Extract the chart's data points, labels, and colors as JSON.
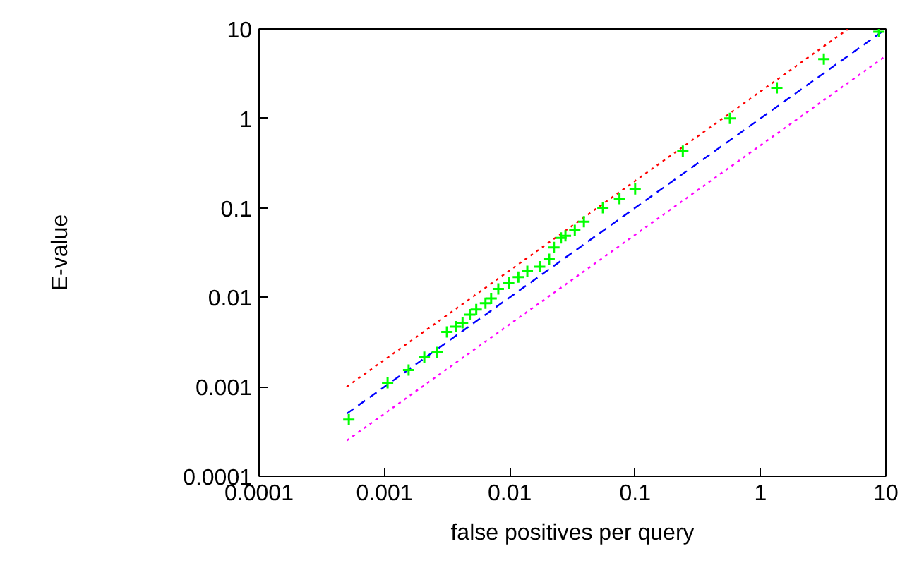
{
  "chart_data": {
    "type": "scatter",
    "xlabel": "false positives per query",
    "ylabel": "E-value",
    "log": "xy",
    "xlim": [
      0.0001,
      10
    ],
    "ylim": [
      0.0001,
      10
    ],
    "xticks": [
      0.0001,
      0.001,
      0.01,
      0.1,
      1,
      10
    ],
    "yticks": [
      0.0001,
      0.001,
      0.01,
      0.1,
      1,
      10
    ],
    "series": [
      {
        "type": "line",
        "color": "#ff0000",
        "line_style": "dotted",
        "x": [
          0.0005,
          5
        ],
        "values": [
          0.001,
          10
        ]
      },
      {
        "type": "line",
        "color": "#0000ff",
        "line_style": "dashed",
        "x": [
          0.0005,
          10
        ],
        "values": [
          0.0005,
          10
        ]
      },
      {
        "type": "line",
        "color": "#ff00ff",
        "line_style": "dotted",
        "x": [
          0.0005,
          10
        ],
        "values": [
          0.00025,
          5
        ]
      },
      {
        "color": "#00ff00",
        "marker": "cross",
        "x": [
          0.00052,
          0.00106,
          0.00156,
          0.00208,
          0.00264,
          0.00315,
          0.0037,
          0.0042,
          0.0048,
          0.0054,
          0.0064,
          0.0071,
          0.0081,
          0.0098,
          0.0117,
          0.0138,
          0.0173,
          0.0206,
          0.0225,
          0.0256,
          0.0278,
          0.033,
          0.039,
          0.0553,
          0.075,
          0.1,
          0.24,
          0.57,
          1.35,
          3.2,
          8.8
        ],
        "values": [
          0.00043,
          0.00111,
          0.00154,
          0.00214,
          0.00242,
          0.0041,
          0.0047,
          0.0052,
          0.0064,
          0.0073,
          0.0086,
          0.0097,
          0.0124,
          0.0145,
          0.0168,
          0.0195,
          0.022,
          0.0266,
          0.036,
          0.046,
          0.0486,
          0.056,
          0.07,
          0.1,
          0.127,
          0.163,
          0.43,
          1.0,
          2.2,
          4.6,
          9.3
        ]
      }
    ]
  }
}
